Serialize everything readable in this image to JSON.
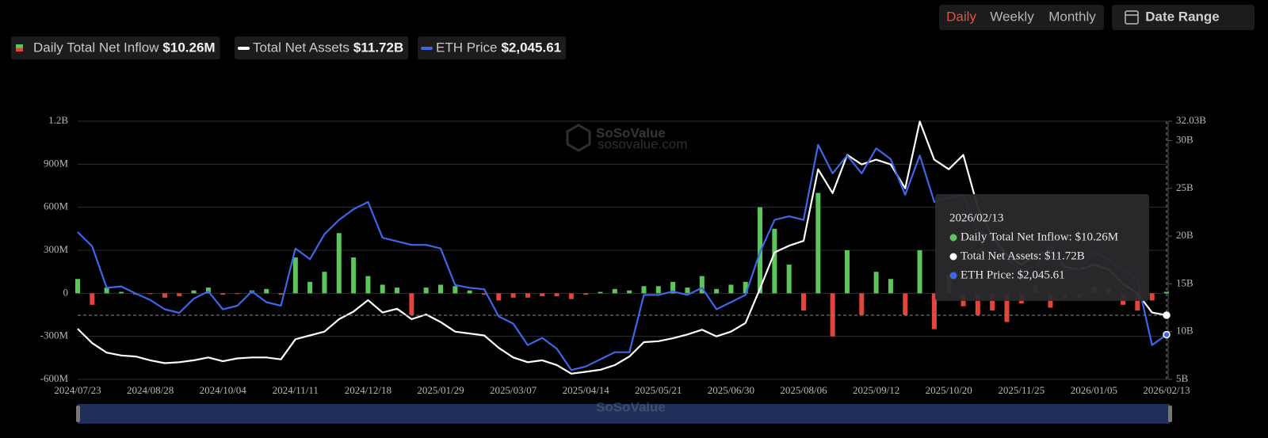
{
  "controls": {
    "periods": [
      "Daily",
      "Weekly",
      "Monthly"
    ],
    "active": 0,
    "date_range": "Date Range"
  },
  "watermark": {
    "brand": "SoSoValue",
    "site": "sosovalue.com"
  },
  "tooltip": {
    "date": "2026/02/13",
    "items": [
      "Daily Total Net Inflow: $10.26M",
      "Total Net Assets: $11.72B",
      "ETH Price: $2,045.61"
    ]
  },
  "chart_data": {
    "type": "combo",
    "categories": [
      "2024/07/23",
      null,
      null,
      null,
      null,
      "2024/08/28",
      null,
      null,
      null,
      null,
      "2024/10/04",
      null,
      null,
      null,
      null,
      "2024/11/11",
      null,
      null,
      null,
      null,
      "2024/12/18",
      null,
      null,
      null,
      null,
      "2025/01/29",
      null,
      null,
      null,
      null,
      "2025/03/07",
      null,
      null,
      null,
      null,
      "2025/04/14",
      null,
      null,
      null,
      null,
      "2025/05/21",
      null,
      null,
      null,
      null,
      "2025/06/30",
      null,
      null,
      null,
      null,
      "2025/08/06",
      null,
      null,
      null,
      null,
      "2025/09/12",
      null,
      null,
      null,
      null,
      "2025/10/20",
      null,
      null,
      null,
      null,
      "2025/11/25",
      null,
      null,
      null,
      null,
      "2026/01/05",
      null,
      null,
      null,
      null,
      "2026/02/13"
    ],
    "series": [
      {
        "name": "Daily Total Net Inflow",
        "type": "bar",
        "axis": "y",
        "color": "#5cc65c",
        "negative_color": "#e0463c",
        "legend_value": "$10.26M",
        "values": [
          100000000.0,
          -80000000.0,
          40000000.0,
          10000000.0,
          -10000000.0,
          -5000000.0,
          -30000000.0,
          -20000000.0,
          20000000.0,
          40000000.0,
          -10000000.0,
          -5000000.0,
          20000000.0,
          30000000.0,
          -10000000.0,
          250000000.0,
          80000000.0,
          150000000.0,
          420000000.0,
          250000000.0,
          120000000.0,
          60000000.0,
          40000000.0,
          -150000000.0,
          40000000.0,
          60000000.0,
          50000000.0,
          20000000.0,
          -10000000.0,
          -50000000.0,
          -30000000.0,
          -30000000.0,
          -20000000.0,
          -20000000.0,
          -40000000.0,
          -10000000.0,
          10000000.0,
          30000000.0,
          20000000.0,
          50000000.0,
          50000000.0,
          80000000.0,
          40000000.0,
          120000000.0,
          30000000.0,
          60000000.0,
          80000000.0,
          600000000.0,
          450000000.0,
          200000000.0,
          -120000000.0,
          700000000.0,
          -300000000.0,
          300000000.0,
          -150000000.0,
          150000000.0,
          100000000.0,
          -150000000.0,
          300000000.0,
          -250000000.0,
          130000000.0,
          -90000000.0,
          -150000000.0,
          -120000000.0,
          -200000000.0,
          -70000000.0,
          60000000.0,
          -100000000.0,
          -40000000.0,
          -30000000.0,
          50000000.0,
          40000000.0,
          -80000000.0,
          -120000000.0,
          -50000000.0,
          10260000.0
        ]
      },
      {
        "name": "Total Net Assets",
        "type": "line",
        "axis": "y2",
        "color": "#ffffff",
        "legend_value": "$11.72B",
        "values": [
          10300000000.0,
          8800000000.0,
          7800000000.0,
          7500000000.0,
          7400000000.0,
          7000000000.0,
          6700000000.0,
          6800000000.0,
          7000000000.0,
          7300000000.0,
          6900000000.0,
          7200000000.0,
          7300000000.0,
          7300000000.0,
          7100000000.0,
          9200000000.0,
          9600000000.0,
          10000000000.0,
          11300000000.0,
          12100000000.0,
          13300000000.0,
          12000000000.0,
          12400000000.0,
          11300000000.0,
          11800000000.0,
          11000000000.0,
          10000000000.0,
          9800000000.0,
          9600000000.0,
          8300000000.0,
          7300000000.0,
          6800000000.0,
          7000000000.0,
          6500000000.0,
          5600000000.0,
          5800000000.0,
          6000000000.0,
          6500000000.0,
          7400000000.0,
          8900000000.0,
          9000000000.0,
          9300000000.0,
          9700000000.0,
          10200000000.0,
          9500000000.0,
          10000000000.0,
          10900000000.0,
          14500000000.0,
          18300000000.0,
          19000000000.0,
          19500000000.0,
          27000000000.0,
          24500000000.0,
          28500000000.0,
          27500000000.0,
          28000000000.0,
          27500000000.0,
          25000000000.0,
          32000000000.0,
          28000000000.0,
          27000000000.0,
          28500000000.0,
          23000000000.0,
          20000000000.0,
          18000000000.0,
          17000000000.0,
          18000000000.0,
          18500000000.0,
          16800000000.0,
          16500000000.0,
          17000000000.0,
          16500000000.0,
          15000000000.0,
          14000000000.0,
          12000000000.0,
          11720000000.0
        ]
      },
      {
        "name": "ETH Price",
        "type": "line",
        "axis": "y3",
        "color": "#3f66e8",
        "legend_value": "$2,045.61",
        "values": [
          3480,
          3280,
          2700,
          2720,
          2620,
          2530,
          2400,
          2350,
          2550,
          2650,
          2400,
          2450,
          2650,
          2500,
          2450,
          3250,
          3100,
          3450,
          3650,
          3800,
          3900,
          3400,
          3350,
          3300,
          3300,
          3250,
          2740,
          2700,
          2680,
          2300,
          2200,
          1900,
          2000,
          1850,
          1550,
          1600,
          1700,
          1800,
          1800,
          2600,
          2600,
          2650,
          2600,
          2700,
          2400,
          2500,
          2600,
          3200,
          3650,
          3700,
          3650,
          4700,
          4300,
          4550,
          4300,
          4650,
          4500,
          4000,
          4550,
          3900,
          3950,
          4000,
          3500,
          3400,
          3100,
          2950,
          3000,
          3300,
          2950,
          2950,
          3200,
          3100,
          2950,
          2800,
          1900,
          2045.61
        ]
      }
    ],
    "ylim": [
      -600000000.0,
      1200000000.0
    ],
    "yticks": [
      {
        "value": -600000000.0,
        "label": "-600M"
      },
      {
        "value": -300000000.0,
        "label": "-300M"
      },
      0,
      {
        "value": 300000000.0,
        "label": "300M"
      },
      {
        "value": 600000000.0,
        "label": "600M"
      },
      {
        "value": 900000000.0,
        "label": "900M"
      },
      {
        "value": 1200000000.0,
        "label": "1.2B"
      }
    ],
    "y2lim": [
      5000000000.0,
      32030000000.0
    ],
    "y2ticks": [
      {
        "value": 5000000000.0,
        "label": "5B"
      },
      {
        "value": 10000000000.0,
        "label": "10B"
      },
      {
        "value": 15000000000.0,
        "label": "15B"
      },
      {
        "value": 20000000000.0,
        "label": "20B"
      },
      {
        "value": 25000000000.0,
        "label": "25B"
      },
      {
        "value": 30000000000.0,
        "label": "30B"
      },
      {
        "value": 32030000000.0,
        "label": "32.03B"
      }
    ],
    "y3lim": [
      1420,
      5030
    ],
    "grid": true
  }
}
